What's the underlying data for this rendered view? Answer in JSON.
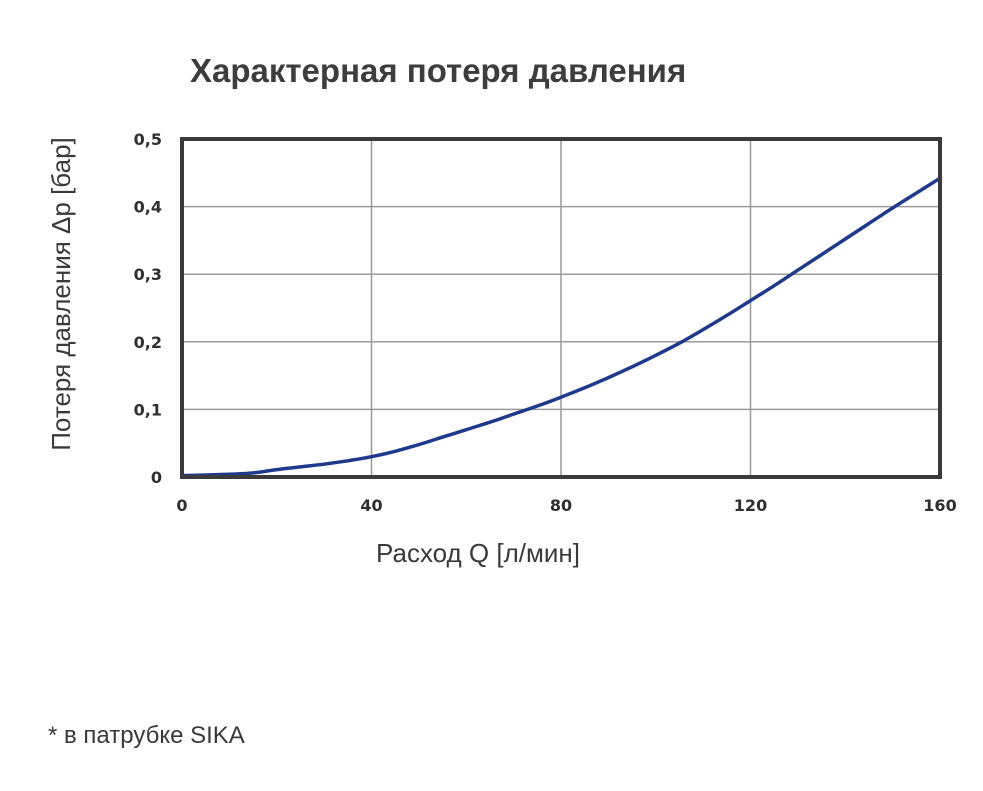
{
  "chart_data": {
    "type": "line",
    "title": "Характерная потеря давления",
    "xlabel": "Расход Q [л/мин]",
    "ylabel": "Потеря давления Δp [бар]",
    "xlim": [
      0,
      160
    ],
    "ylim": [
      0,
      0.5
    ],
    "x_ticks": [
      {
        "value": 0,
        "label": "0"
      },
      {
        "value": 40,
        "label": "40"
      },
      {
        "value": 80,
        "label": "80"
      },
      {
        "value": 120,
        "label": "120"
      },
      {
        "value": 160,
        "label": "160"
      }
    ],
    "y_ticks": [
      {
        "value": 0,
        "label": "0"
      },
      {
        "value": 0.1,
        "label": "0,1"
      },
      {
        "value": 0.2,
        "label": "0,2"
      },
      {
        "value": 0.3,
        "label": "0,3"
      },
      {
        "value": 0.4,
        "label": "0,4"
      },
      {
        "value": 0.5,
        "label": "0,5"
      }
    ],
    "grid": true,
    "series": [
      {
        "color": "#1f3a8a",
        "x": [
          0,
          5,
          10,
          15,
          20,
          25,
          30,
          35,
          40,
          45,
          50,
          55,
          60,
          65,
          70,
          75,
          80,
          85,
          90,
          95,
          100,
          105,
          110,
          115,
          120,
          125,
          130,
          135,
          140,
          145,
          150,
          155,
          160
        ],
        "y": [
          0.002,
          0.003,
          0.004,
          0.006,
          0.011,
          0.015,
          0.019,
          0.024,
          0.03,
          0.038,
          0.048,
          0.059,
          0.07,
          0.081,
          0.093,
          0.105,
          0.118,
          0.132,
          0.147,
          0.163,
          0.18,
          0.198,
          0.218,
          0.239,
          0.261,
          0.283,
          0.306,
          0.329,
          0.352,
          0.375,
          0.398,
          0.42,
          0.442
        ]
      }
    ]
  },
  "footnote": "* в патрубке SIKA"
}
